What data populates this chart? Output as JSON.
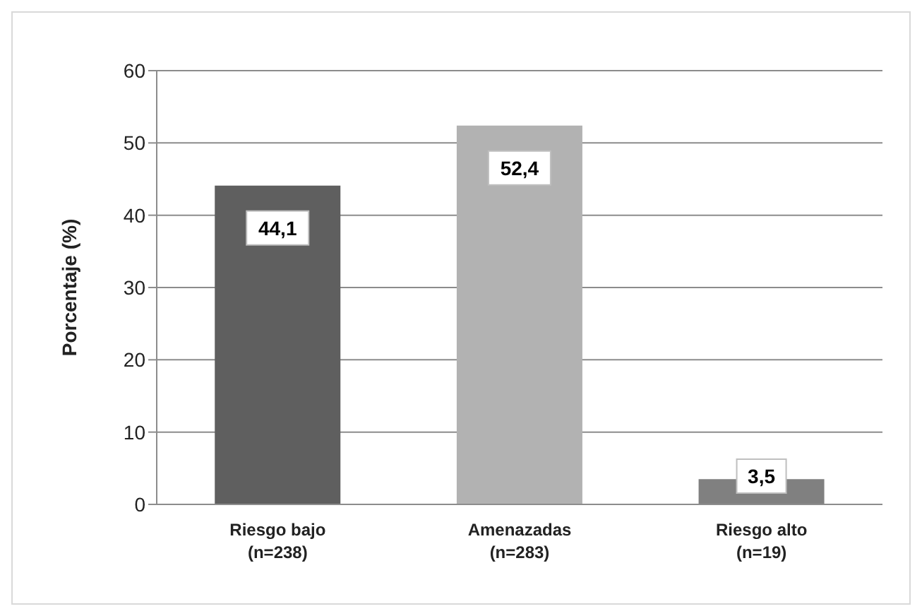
{
  "chart_data": {
    "type": "bar",
    "ylabel": "Porcentaje (%)",
    "categories": [
      "Riesgo bajo\n(n=238)",
      "Amenazadas\n(n=283)",
      "Riesgo alto\n(n=19)"
    ],
    "values": [
      44.1,
      52.4,
      3.5
    ],
    "colors": [
      "#5f5f5f",
      "#b2b2b2",
      "#808080"
    ],
    "value_labels": [
      "44,1",
      "52,4",
      "3,5"
    ],
    "ylim": [
      0,
      60
    ],
    "yticks": [
      0,
      10,
      20,
      30,
      40,
      50,
      60
    ],
    "grid": "y"
  }
}
